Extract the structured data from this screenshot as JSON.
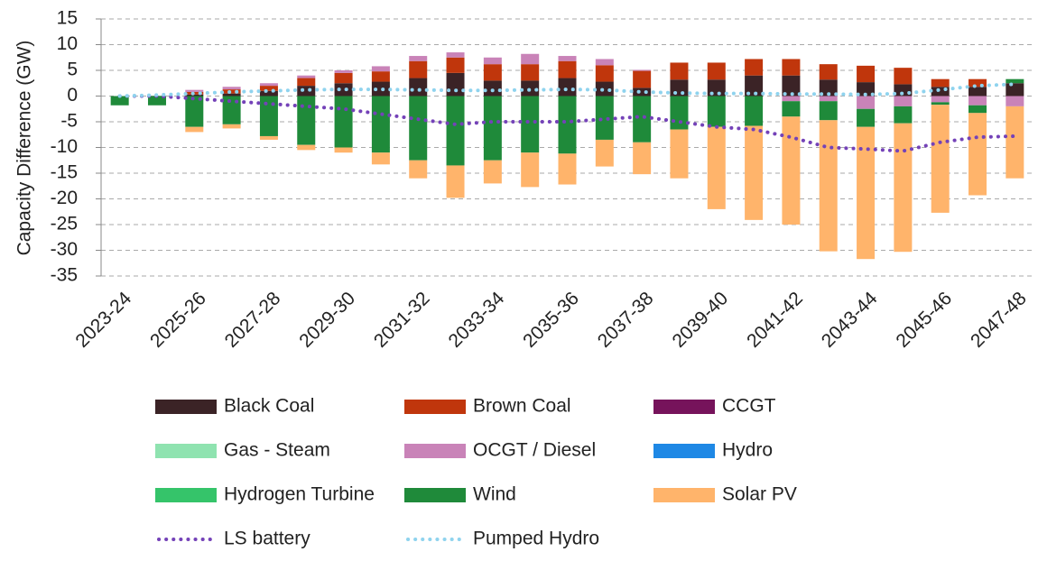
{
  "chart_data": {
    "type": "bar",
    "stacked": true,
    "y_label": "Capacity Difference (GW)",
    "categories": [
      "2023-24",
      null,
      "2025-26",
      null,
      "2027-28",
      null,
      "2029-30",
      null,
      "2031-32",
      null,
      "2033-34",
      null,
      "2035-36",
      null,
      "2037-38",
      null,
      "2039-40",
      null,
      "2041-42",
      null,
      "2043-44",
      null,
      "2045-46",
      null,
      "2047-48"
    ],
    "ylim": [
      -35,
      15
    ],
    "yticks": [
      -35,
      -30,
      -25,
      -20,
      -15,
      -10,
      -5,
      0,
      5,
      10,
      15
    ],
    "grid": true,
    "series": [
      {
        "name": "Black Coal",
        "color": "#3b2326",
        "values": [
          0,
          0,
          0.3,
          0.5,
          1,
          2,
          2.5,
          2.8,
          3.5,
          4.5,
          3,
          3,
          3.5,
          2.8,
          1.6,
          3.2,
          3.2,
          4,
          4,
          3.2,
          2.7,
          2.3,
          1.8,
          1.8,
          2.5
        ]
      },
      {
        "name": "Brown Coal",
        "color": "#c0360c",
        "values": [
          0,
          0,
          0.5,
          0.8,
          1,
          1.5,
          2,
          2,
          3.3,
          3,
          3.2,
          3.2,
          3.3,
          3.2,
          3.3,
          3.3,
          3.3,
          3.2,
          3.2,
          3,
          3.2,
          3.2,
          1.5,
          1.5,
          0
        ]
      },
      {
        "name": "CCGT",
        "color": "#76135b",
        "values": [
          0,
          0,
          0,
          0,
          0,
          0,
          0,
          0,
          0,
          0,
          0,
          0,
          0,
          0,
          0,
          0,
          0,
          0,
          0,
          0,
          0,
          0,
          0,
          0,
          0
        ]
      },
      {
        "name": "Gas - Steam",
        "color": "#8fe3b0",
        "values": [
          0,
          0,
          0,
          0,
          0,
          0,
          0,
          0,
          0,
          0,
          0,
          0,
          0,
          0,
          0,
          0,
          0,
          0,
          0,
          0,
          0,
          0,
          0,
          0,
          0
        ]
      },
      {
        "name": "OCGT / Diesel",
        "color": "#c983b8",
        "values": [
          0,
          0,
          0.4,
          0.5,
          0.5,
          0.5,
          0.5,
          1,
          1,
          1,
          1.3,
          2,
          1,
          1.2,
          0.2,
          0,
          0,
          0,
          -1,
          -1,
          -2.5,
          -2,
          -1.2,
          -1.8,
          -2
        ]
      },
      {
        "name": "Hydro",
        "color": "#1e88e5",
        "values": [
          0,
          0,
          0,
          0,
          0,
          0,
          0,
          0,
          0,
          0,
          0,
          0,
          0,
          0,
          0,
          0,
          0,
          0,
          0,
          0,
          0,
          0,
          0,
          0,
          0
        ]
      },
      {
        "name": "Hydrogen Turbine",
        "color": "#35c46a",
        "values": [
          0,
          0,
          0,
          0,
          0,
          0,
          0,
          0,
          0,
          0,
          0,
          0,
          0,
          0,
          0,
          0,
          0,
          0,
          0,
          0,
          0,
          0,
          0,
          0,
          0
        ]
      },
      {
        "name": "Wind",
        "color": "#1f8a3a",
        "values": [
          -1.8,
          -1.8,
          -6,
          -5.5,
          -7.8,
          -9.5,
          -10,
          -11,
          -12.5,
          -13.5,
          -12.5,
          -11,
          -11.2,
          -8.5,
          -9,
          -6.5,
          -6,
          -5.8,
          -3,
          -3.7,
          -3.5,
          -3.3,
          -0.5,
          -1.5,
          0.8
        ]
      },
      {
        "name": "Solar PV",
        "color": "#ffb46b",
        "values": [
          0,
          0,
          -1,
          -0.8,
          -0.7,
          -1,
          -1,
          -2.3,
          -3.5,
          -6.3,
          -4.5,
          -6.7,
          -6,
          -5.2,
          -6.2,
          -9.5,
          -16,
          -18.3,
          -21,
          -25.5,
          -25.7,
          -25,
          -21,
          -16,
          -14
        ]
      },
      {
        "name": "LS battery",
        "type": "line",
        "linestyle": "dotted",
        "color": "#7442b8",
        "values": [
          0,
          0,
          -0.5,
          -1,
          -1.5,
          -2,
          -2.5,
          -3.5,
          -4.5,
          -5.5,
          -5,
          -5,
          -5,
          -4.5,
          -4,
          -5,
          -6,
          -6.5,
          -8,
          -10,
          -10.3,
          -10.7,
          -9,
          -8,
          -7.8
        ]
      },
      {
        "name": "Pumped Hydro",
        "type": "line",
        "linestyle": "dotted",
        "color": "#8fd3ee",
        "values": [
          0,
          0.2,
          0.5,
          0.8,
          1,
          1.2,
          1.3,
          1.3,
          1.2,
          1.1,
          1.1,
          1.2,
          1.3,
          1.2,
          0.8,
          0.6,
          0.5,
          0.5,
          0.4,
          0.4,
          0.3,
          0.5,
          1.2,
          2,
          2.3
        ]
      }
    ]
  }
}
